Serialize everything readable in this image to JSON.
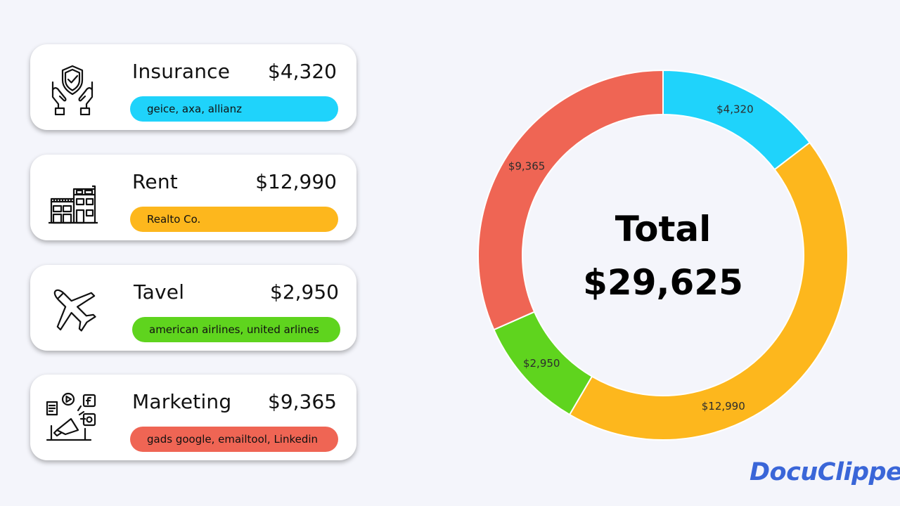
{
  "cards": [
    {
      "name": "Insurance",
      "amount": "$4,320",
      "vendors": "geice, axa, allianz",
      "color": "#1fd3fb",
      "icon": "insurance-hands-shield-icon"
    },
    {
      "name": "Rent",
      "amount": "$12,990",
      "vendors": "Realto Co.",
      "color": "#fdb71d",
      "icon": "building-icon"
    },
    {
      "name": "Tavel",
      "amount": "$2,950",
      "vendors": "american airlines, united arlines",
      "color": "#5fd41e",
      "icon": "airplane-icon"
    },
    {
      "name": "Marketing",
      "amount": "$9,365",
      "vendors": "gads google, emailtool, Linkedin",
      "color": "#ef6554",
      "icon": "marketing-megaphone-icon"
    }
  ],
  "chart_data": {
    "type": "pie",
    "donut": true,
    "slices": [
      {
        "label": "$4,320",
        "value": 4320,
        "color": "#1fd3fb"
      },
      {
        "label": "$12,990",
        "value": 12990,
        "color": "#fdb71d"
      },
      {
        "label": "$2,950",
        "value": 2950,
        "color": "#5fd41e"
      },
      {
        "label": "$9,365",
        "value": 9365,
        "color": "#ef6554"
      }
    ],
    "center_title": "Total",
    "center_value": "$29,625"
  },
  "logo": {
    "text": "DocuClipper"
  }
}
